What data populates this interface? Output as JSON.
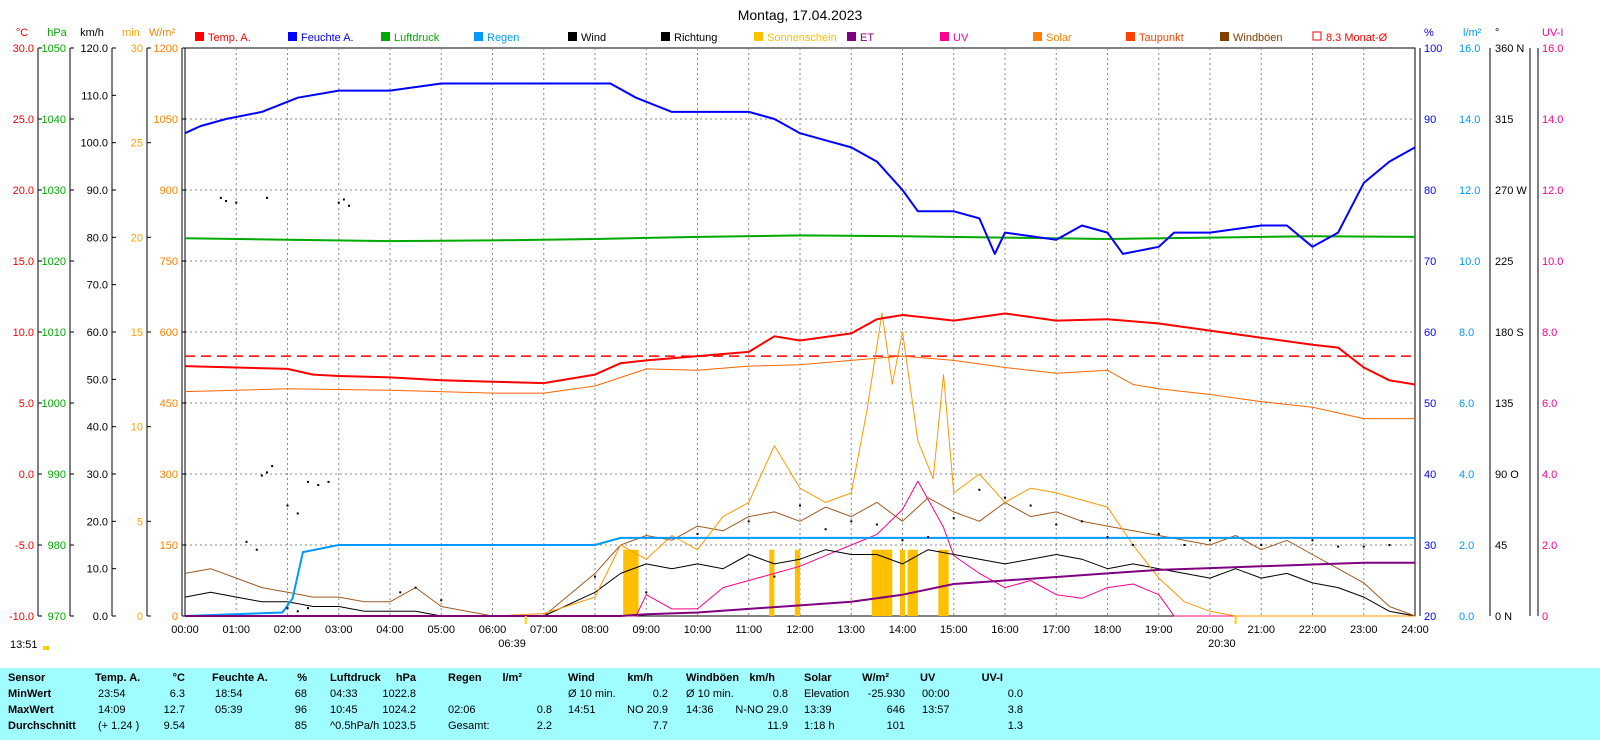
{
  "title": "Montag, 17.04.2023",
  "chart_data": {
    "type": "line",
    "x_ticks": [
      "00:00",
      "01:00",
      "02:00",
      "03:00",
      "04:00",
      "05:00",
      "06:00",
      "07:00",
      "08:00",
      "09:00",
      "10:00",
      "11:00",
      "12:00",
      "13:00",
      "14:00",
      "15:00",
      "16:00",
      "17:00",
      "18:00",
      "19:00",
      "20:00",
      "21:00",
      "22:00",
      "23:00",
      "24:00"
    ],
    "sunrise": "06:39",
    "sunset": "20:30",
    "corner_time": "13:51",
    "legend": [
      {
        "name": "Temp. A.",
        "color": "#ff0000"
      },
      {
        "name": "Feuchte A.",
        "color": "#0000ff"
      },
      {
        "name": "Luftdruck",
        "color": "#00aa00"
      },
      {
        "name": "Regen",
        "color": "#0099ff"
      },
      {
        "name": "Wind",
        "color": "#000000"
      },
      {
        "name": "Richtung",
        "color": "#000000"
      },
      {
        "name": "Sonnenschein",
        "color": "#ffc000"
      },
      {
        "name": "ET",
        "color": "#800080"
      },
      {
        "name": "UV",
        "color": "#ff0090"
      },
      {
        "name": "Solar",
        "color": "#ff8000"
      },
      {
        "name": "Taupunkt",
        "color": "#ff4000"
      },
      {
        "name": "Windböen",
        "color": "#804000"
      },
      {
        "name": "8.3 Monat-Ø",
        "color": "#ff0000"
      }
    ],
    "axes_left": [
      {
        "unit": "°C",
        "color": "#ff0000",
        "range": [
          -10,
          30
        ],
        "ticks": [
          "30.0",
          "25.0",
          "20.0",
          "15.0",
          "10.0",
          "5.0",
          "0.0",
          "-5.0",
          "-10.0"
        ]
      },
      {
        "unit": "hPa",
        "color": "#00aa00",
        "range": [
          970,
          1050
        ],
        "ticks": [
          "1050",
          "1040",
          "1030",
          "1020",
          "1010",
          "1000",
          "990",
          "980",
          "970"
        ]
      },
      {
        "unit": "km/h",
        "color": "#000000",
        "range": [
          0,
          120
        ],
        "ticks": [
          "120.0",
          "110.0",
          "100.0",
          "90.0",
          "80.0",
          "70.0",
          "60.0",
          "50.0",
          "40.0",
          "30.0",
          "20.0",
          "10.0",
          "0.0"
        ]
      },
      {
        "unit": "min",
        "color": "#ffa500",
        "range": [
          0,
          30
        ],
        "ticks": [
          "30",
          "25",
          "20",
          "15",
          "10",
          "5",
          "0"
        ]
      },
      {
        "unit": "W/m²",
        "color": "#ff8000",
        "range": [
          0,
          1200
        ],
        "ticks": [
          "1200",
          "1050",
          "900",
          "750",
          "600",
          "450",
          "300",
          "150",
          "0"
        ]
      }
    ],
    "axes_right": [
      {
        "unit": "%",
        "color": "#0000ff",
        "range": [
          20,
          100
        ],
        "ticks": [
          "100",
          "90",
          "80",
          "70",
          "60",
          "50",
          "40",
          "30",
          "20"
        ]
      },
      {
        "unit": "l/m²",
        "color": "#0099ff",
        "range": [
          0,
          16
        ],
        "ticks": [
          "16.0",
          "14.0",
          "12.0",
          "10.0",
          "8.0",
          "6.0",
          "4.0",
          "2.0",
          "0.0"
        ]
      },
      {
        "unit": "°",
        "color": "#000000",
        "range": [
          0,
          360
        ],
        "ticks": [
          "360 N",
          "315",
          "270 W",
          "225",
          "180 S",
          "135",
          "90 O",
          "45",
          "0 N"
        ]
      },
      {
        "unit": "UV-I",
        "color": "#ff0090",
        "range": [
          0,
          16
        ],
        "ticks": [
          "16.0",
          "14.0",
          "12.0",
          "10.0",
          "8.0",
          "6.0",
          "4.0",
          "2.0",
          "0"
        ]
      }
    ],
    "series": [
      {
        "name": "Temp. A.",
        "unit": "°C",
        "x": [
          0,
          1,
          2,
          2.5,
          3,
          4,
          5,
          6,
          7,
          8,
          8.5,
          9,
          10,
          11,
          11.5,
          12,
          13,
          13.5,
          14,
          14.5,
          15,
          16,
          17,
          18,
          19,
          20,
          21,
          22,
          22.5,
          23,
          23.5,
          24
        ],
        "y": [
          7.6,
          7.5,
          7.4,
          7.0,
          6.9,
          6.8,
          6.6,
          6.5,
          6.4,
          7.0,
          7.8,
          8.0,
          8.3,
          8.6,
          9.7,
          9.4,
          9.9,
          10.9,
          11.2,
          11.0,
          10.8,
          11.3,
          10.8,
          10.9,
          10.6,
          10.1,
          9.6,
          9.1,
          8.9,
          7.5,
          6.6,
          6.3
        ]
      },
      {
        "name": "Feuchte A.",
        "unit": "%",
        "x": [
          0,
          0.3,
          0.8,
          1.5,
          2.2,
          3,
          4,
          5,
          6,
          7,
          8,
          8.3,
          8.8,
          9.5,
          10,
          11,
          11.5,
          12,
          12.5,
          13,
          13.5,
          14,
          14.3,
          15,
          15.5,
          15.8,
          16,
          17,
          17.5,
          18,
          18.3,
          19,
          19.3,
          20,
          21,
          21.5,
          22,
          22.5,
          23,
          23.5,
          24
        ],
        "y": [
          88,
          89,
          90,
          91,
          93,
          94,
          94,
          95,
          95,
          95,
          95,
          95,
          93,
          91,
          91,
          91,
          90,
          88,
          87,
          86,
          84,
          80,
          77,
          77,
          76,
          71,
          74,
          73,
          75,
          74,
          71,
          72,
          74,
          74,
          75,
          75,
          72,
          74,
          81,
          84,
          86
        ]
      },
      {
        "name": "Luftdruck",
        "unit": "hPa",
        "x": [
          0,
          2,
          4,
          6,
          8,
          10,
          12,
          14,
          16,
          18,
          20,
          22,
          24
        ],
        "y": [
          1023.2,
          1023.0,
          1022.8,
          1022.9,
          1023.1,
          1023.4,
          1023.6,
          1023.5,
          1023.3,
          1023.1,
          1023.3,
          1023.5,
          1023.4
        ]
      },
      {
        "name": "Taupunkt",
        "unit": "°C",
        "x": [
          0,
          2,
          4,
          6,
          7,
          8,
          9,
          10,
          11,
          12,
          13,
          14,
          15,
          16,
          17,
          18,
          18.5,
          19,
          20,
          21,
          22,
          23,
          24
        ],
        "y": [
          5.8,
          6.0,
          5.9,
          5.7,
          5.7,
          6.2,
          7.4,
          7.3,
          7.6,
          7.7,
          8.0,
          8.3,
          8.0,
          7.5,
          7.1,
          7.3,
          6.3,
          6.0,
          5.6,
          5.1,
          4.7,
          3.9,
          3.9
        ]
      },
      {
        "name": "Regen",
        "unit": "l/m²",
        "x": [
          0,
          1.9,
          2.1,
          2.3,
          3.0,
          4,
          6,
          8,
          8.5,
          9,
          12,
          16,
          20,
          24
        ],
        "y": [
          0,
          0.1,
          0.5,
          1.8,
          2.0,
          2.0,
          2.0,
          2.0,
          2.2,
          2.2,
          2.2,
          2.2,
          2.2,
          2.2
        ]
      },
      {
        "name": "ET",
        "unit": "l/m²",
        "x": [
          0,
          8.5,
          9,
          10,
          11,
          12,
          13,
          14,
          15,
          16,
          17,
          18,
          19,
          20,
          21,
          22,
          23,
          24
        ],
        "y": [
          0,
          0,
          0.05,
          0.1,
          0.2,
          0.3,
          0.4,
          0.6,
          0.9,
          1.0,
          1.1,
          1.2,
          1.3,
          1.35,
          1.4,
          1.45,
          1.5,
          1.5
        ]
      },
      {
        "name": "Solar",
        "unit": "W/m²",
        "x": [
          0,
          6,
          7,
          8,
          8.5,
          9,
          9.5,
          10,
          10.5,
          11,
          11.5,
          12,
          12.5,
          13,
          13.3,
          13.6,
          13.8,
          14,
          14.3,
          14.6,
          14.8,
          15,
          15.5,
          16,
          16.5,
          17,
          18,
          18.5,
          19,
          19.5,
          20,
          20.5,
          24
        ],
        "y": [
          0,
          0,
          5,
          40,
          150,
          120,
          170,
          140,
          210,
          240,
          360,
          270,
          240,
          260,
          430,
          640,
          490,
          600,
          370,
          290,
          510,
          260,
          300,
          240,
          270,
          260,
          230,
          150,
          80,
          30,
          10,
          0,
          0
        ]
      },
      {
        "name": "Wind",
        "unit": "km/h",
        "x": [
          0,
          0.5,
          1,
          1.5,
          2,
          2.5,
          3,
          3.5,
          4,
          4.5,
          5,
          6,
          7,
          8,
          8.5,
          9,
          9.5,
          10,
          10.5,
          11,
          11.5,
          12,
          12.5,
          13,
          13.5,
          14,
          14.5,
          15,
          15.5,
          16,
          16.5,
          17,
          17.5,
          18,
          18.5,
          19,
          19.5,
          20,
          20.5,
          21,
          21.5,
          22,
          22.5,
          23,
          23.5,
          24
        ],
        "y": [
          4,
          5,
          4,
          3,
          3,
          2,
          2,
          1,
          1,
          1,
          0,
          0,
          0,
          5,
          9,
          11,
          10,
          11,
          10,
          13,
          11,
          12,
          14,
          13,
          13,
          11,
          14,
          13,
          12,
          11,
          12,
          13,
          12,
          10,
          11,
          10,
          9,
          8,
          10,
          8,
          9,
          7,
          6,
          4,
          1,
          0
        ]
      },
      {
        "name": "Windböen",
        "unit": "km/h",
        "x": [
          0,
          0.5,
          1,
          1.5,
          2,
          2.5,
          3,
          3.5,
          4,
          4.5,
          5,
          6,
          7,
          8,
          8.5,
          9,
          9.5,
          10,
          10.5,
          11,
          11.5,
          12,
          12.5,
          13,
          13.5,
          14,
          14.5,
          15,
          15.5,
          16,
          16.5,
          17,
          17.5,
          18,
          18.5,
          19,
          19.5,
          20,
          20.5,
          21,
          21.5,
          22,
          22.5,
          23,
          23.5,
          24
        ],
        "y": [
          9,
          10,
          8,
          6,
          5,
          4,
          4,
          3,
          3,
          6,
          2,
          0,
          0,
          9,
          15,
          17,
          16,
          19,
          18,
          21,
          22,
          20,
          23,
          21,
          24,
          20,
          25,
          22,
          20,
          24,
          21,
          22,
          20,
          19,
          18,
          17,
          16,
          15,
          17,
          14,
          16,
          13,
          10,
          7,
          2,
          0
        ]
      },
      {
        "name": "UV",
        "unit": "UV-I",
        "x": [
          0,
          8.8,
          9,
          9.5,
          10,
          10.5,
          11,
          11.5,
          12,
          12.5,
          13,
          13.5,
          14,
          14.3,
          14.8,
          15,
          15.5,
          16,
          16.5,
          17,
          17.5,
          18,
          18.5,
          19,
          19.3,
          24
        ],
        "y": [
          0,
          0,
          0.6,
          0.2,
          0.2,
          0.8,
          1.0,
          1.2,
          1.4,
          1.7,
          2.0,
          2.3,
          3.0,
          3.8,
          2.5,
          1.7,
          1.2,
          0.8,
          1.0,
          0.6,
          0.5,
          0.8,
          0.9,
          0.6,
          0,
          0
        ]
      },
      {
        "name": "Richtung",
        "unit": "°",
        "points": [
          [
            0.7,
            265
          ],
          [
            0.8,
            263
          ],
          [
            1.0,
            262
          ],
          [
            1.6,
            265
          ],
          [
            2.0,
            5
          ],
          [
            2.2,
            3
          ],
          [
            2.4,
            5
          ],
          [
            3.0,
            262
          ],
          [
            3.1,
            264
          ],
          [
            3.2,
            260
          ],
          [
            1.5,
            89
          ],
          [
            1.6,
            91
          ],
          [
            1.7,
            95
          ],
          [
            2.0,
            70
          ],
          [
            2.2,
            65
          ],
          [
            2.4,
            85
          ],
          [
            2.6,
            83
          ],
          [
            2.8,
            85
          ],
          [
            1.2,
            47
          ],
          [
            1.4,
            42
          ],
          [
            4.2,
            15
          ],
          [
            4.5,
            18
          ],
          [
            5.0,
            10
          ],
          [
            8.0,
            25
          ],
          [
            9.0,
            15
          ],
          [
            10.0,
            52
          ],
          [
            11.0,
            60
          ],
          [
            11.5,
            25
          ],
          [
            12.0,
            70
          ],
          [
            12.5,
            55
          ],
          [
            13.0,
            60
          ],
          [
            13.5,
            58
          ],
          [
            14.0,
            48
          ],
          [
            14.5,
            50
          ],
          [
            15.0,
            62
          ],
          [
            15.5,
            80
          ],
          [
            16.0,
            75
          ],
          [
            16.5,
            70
          ],
          [
            17.0,
            58
          ],
          [
            17.5,
            60
          ],
          [
            18.0,
            50
          ],
          [
            18.5,
            45
          ],
          [
            19.0,
            52
          ],
          [
            19.5,
            45
          ],
          [
            20.0,
            48
          ],
          [
            21.0,
            45
          ],
          [
            22.0,
            48
          ],
          [
            22.5,
            44
          ],
          [
            23.0,
            44
          ],
          [
            23.5,
            45
          ]
        ]
      }
    ],
    "sunshine_blocks": [
      [
        8.55,
        8.85
      ],
      [
        11.4,
        11.5
      ],
      [
        11.9,
        12.0
      ],
      [
        13.4,
        13.8
      ],
      [
        13.95,
        14.05
      ],
      [
        14.1,
        14.3
      ],
      [
        14.7,
        14.9
      ]
    ],
    "month_avg": 8.3,
    "month_avg_label": "8.3 Monat-Ø"
  },
  "stats": {
    "headers": [
      "Sensor",
      "Temp. A.",
      "°C",
      "Feuchte A.",
      "%",
      "Luftdruck",
      "hPa",
      "Regen",
      "l/m²",
      "Wind",
      "km/h",
      "Windböen",
      "km/h",
      "Solar",
      "W/m²",
      "UV",
      "UV-I"
    ],
    "rows": [
      {
        "label": "MinWert",
        "temp_time": "23:54",
        "temp_val": "6.3",
        "hum_time": "18:54",
        "hum_val": "68",
        "press_time": "04:33",
        "press_val": "1022.8",
        "rain_time": "",
        "rain_val": "",
        "wind_label": "Ø 10 min.",
        "wind_val": "0.2",
        "gust_label": "Ø 10 min.",
        "gust_val": "0.8",
        "solar_label": "Elevation",
        "solar_val": "-25.930",
        "uv_time": "00:00",
        "uv_val": "0.0"
      },
      {
        "label": "MaxWert",
        "temp_time": "14:09",
        "temp_val": "12.7",
        "hum_time": "05:39",
        "hum_val": "96",
        "press_time": "10:45",
        "press_val": "1024.2",
        "rain_time": "02:06",
        "rain_val": "0.8",
        "wind_label": "14:51",
        "wind_val": "NO 20.9",
        "gust_label": "14:36",
        "gust_val": "N-NO 29.0",
        "solar_label": "13:39",
        "solar_val": "646",
        "uv_time": "13:57",
        "uv_val": "3.8"
      },
      {
        "label": "Durchschnitt",
        "temp_time": "(+ 1.24 )",
        "temp_val": "9.54",
        "hum_time": "",
        "hum_val": "85",
        "press_time": "^0.5hPa/h",
        "press_val": "1023.5",
        "rain_time": "Gesamt:",
        "rain_val": "2.2",
        "wind_label": "",
        "wind_val": "7.7",
        "gust_label": "",
        "gust_val": "11.9",
        "solar_label": "1:18 h",
        "solar_val": "101",
        "uv_time": "",
        "uv_val": "1.3"
      }
    ]
  }
}
